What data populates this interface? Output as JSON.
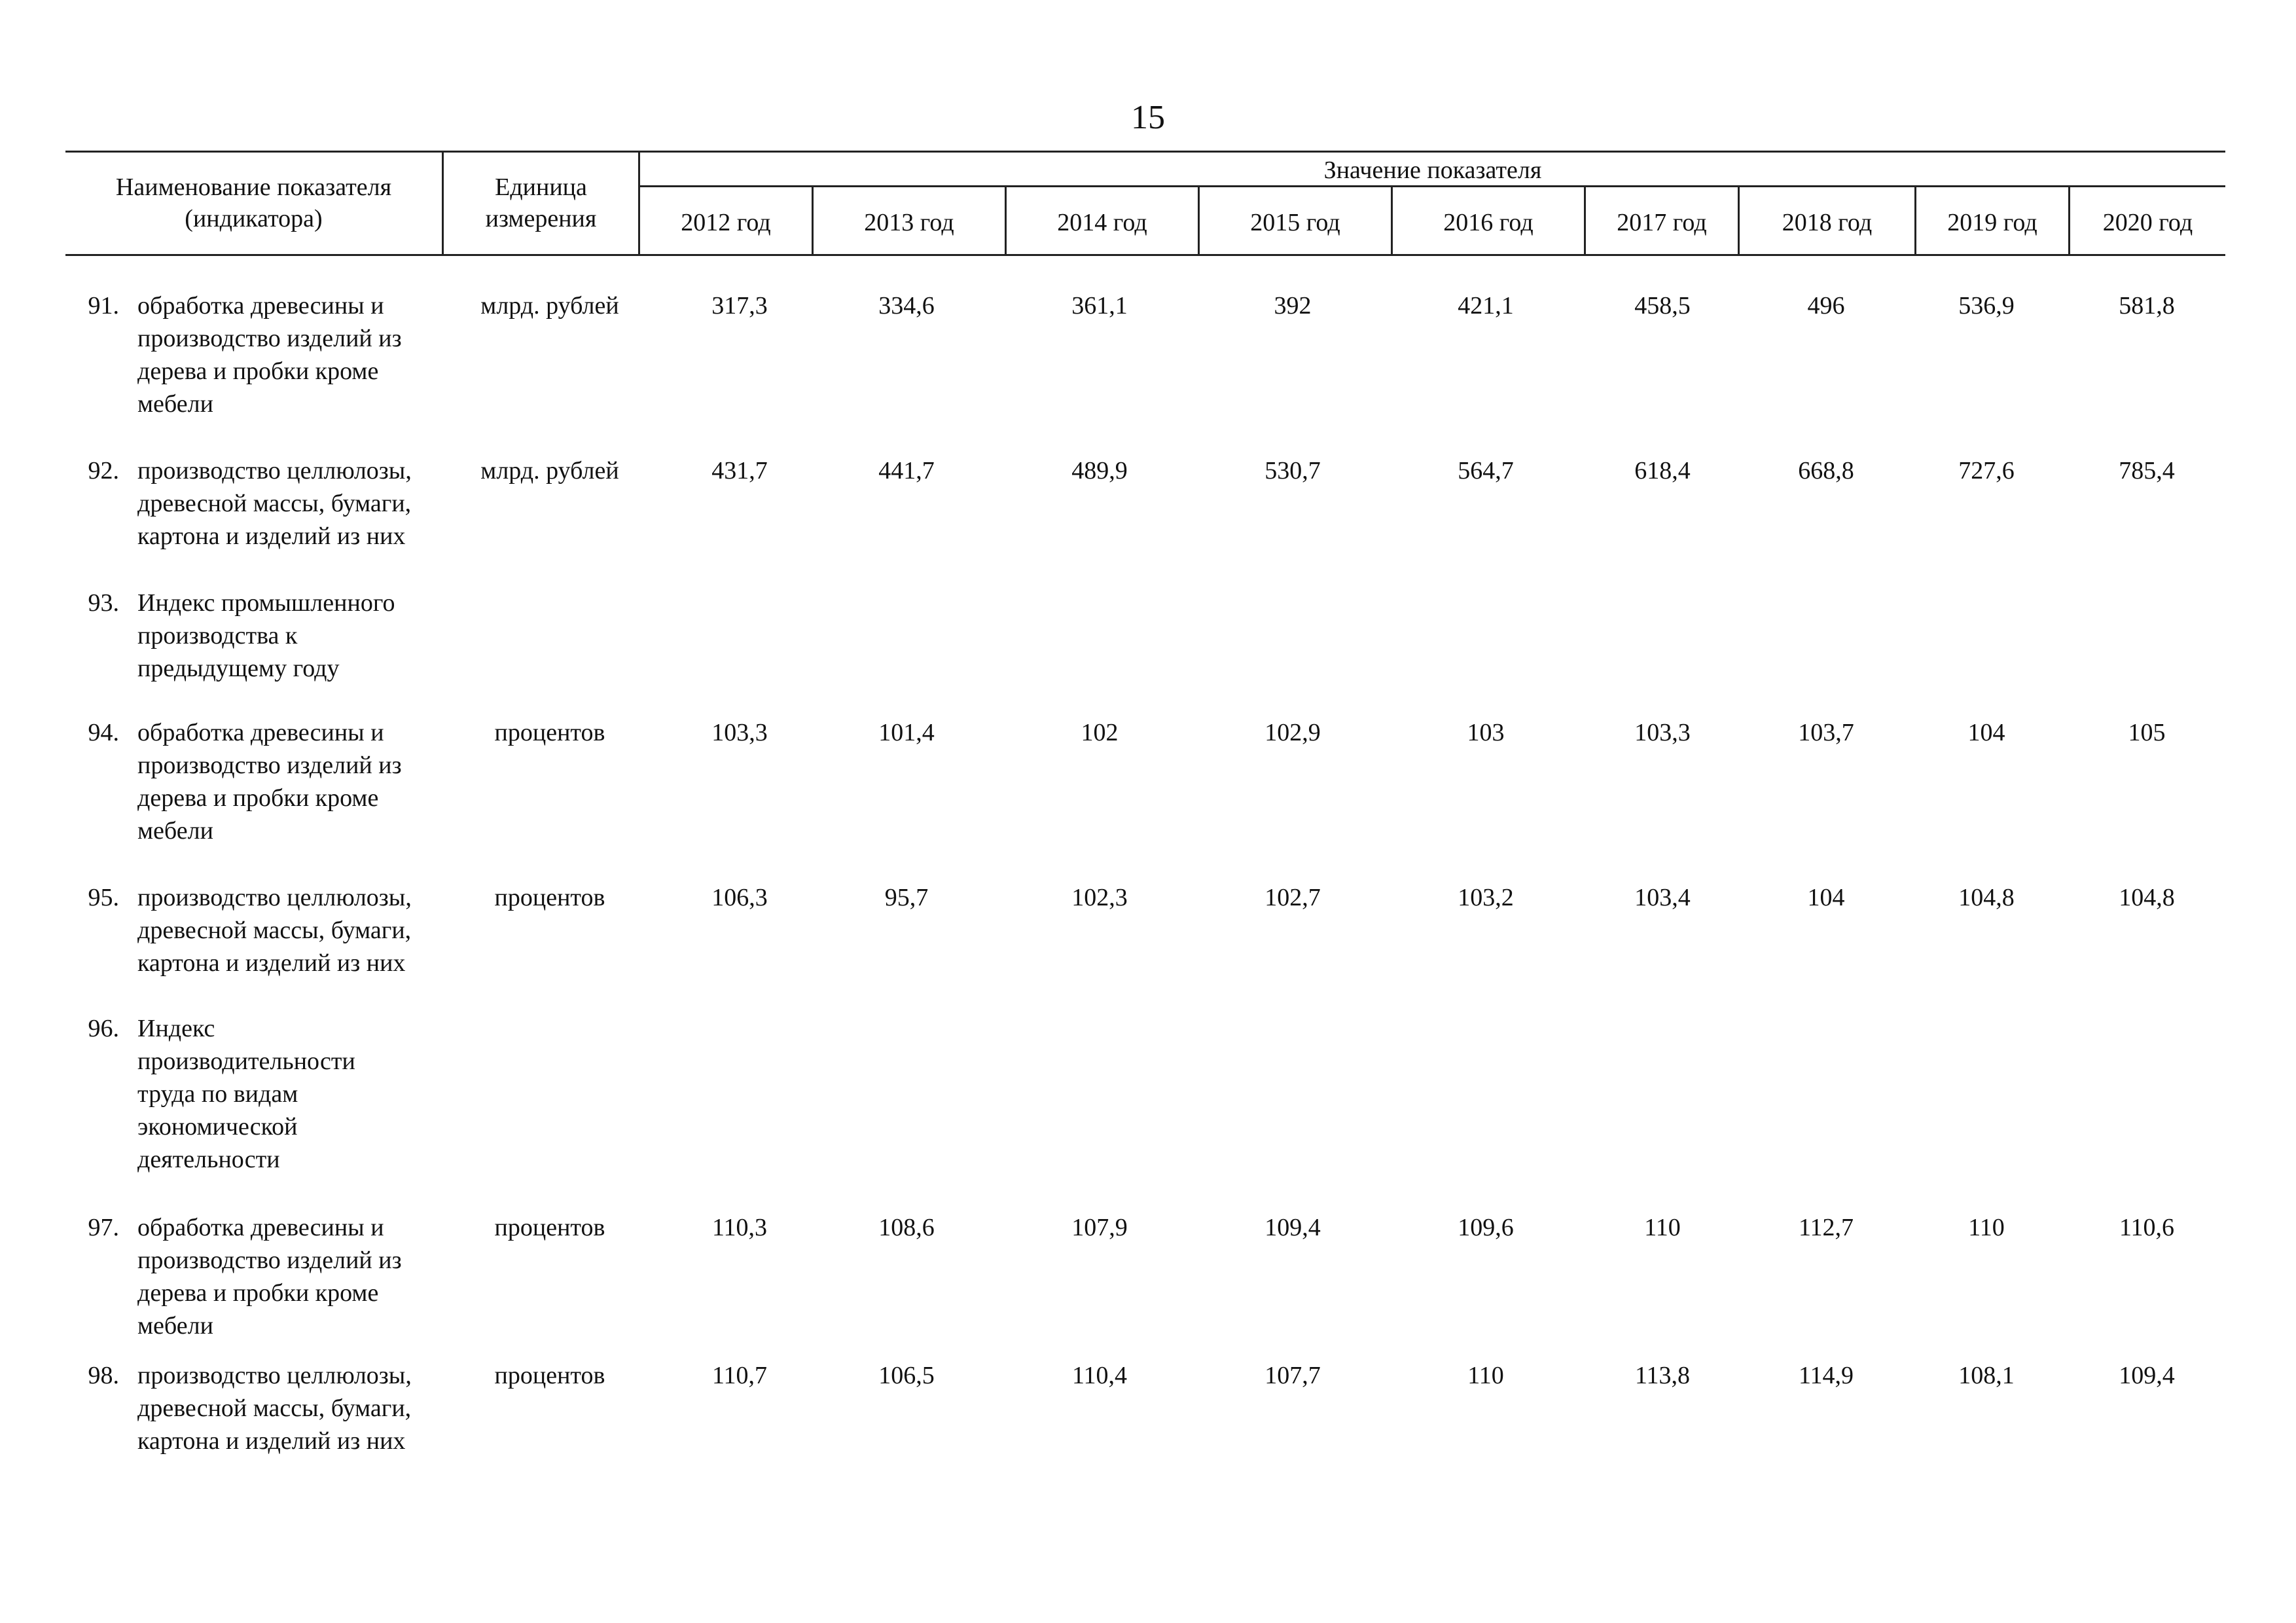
{
  "page": {
    "number": "15"
  },
  "header": {
    "name_col": "Наименование показателя\n(индикатора)",
    "unit_col": "Единица\nизмерения",
    "group_label": "Значение показателя",
    "years": [
      "2012 год",
      "2013 год",
      "2014 год",
      "2015 год",
      "2016 год",
      "2017 год",
      "2018 год",
      "2019 год",
      "2020 год"
    ]
  },
  "rows": [
    {
      "num": "91.",
      "name": "обработка древесины и производство изделий из дерева и пробки кроме мебели",
      "unit": "млрд. рублей",
      "values": [
        "317,3",
        "334,6",
        "361,1",
        "392",
        "421,1",
        "458,5",
        "496",
        "536,9",
        "581,8"
      ]
    },
    {
      "num": "92.",
      "name": "производство целлюлозы, древесной массы, бумаги, картона и изделий из них",
      "unit": "млрд. рублей",
      "values": [
        "431,7",
        "441,7",
        "489,9",
        "530,7",
        "564,7",
        "618,4",
        "668,8",
        "727,6",
        "785,4"
      ]
    },
    {
      "num": "93.",
      "name": "Индекс промышленного производства к предыдущему году",
      "unit": "",
      "values": [
        "",
        "",
        "",
        "",
        "",
        "",
        "",
        "",
        ""
      ]
    },
    {
      "num": "94.",
      "name": "обработка древесины и производство изделий из дерева и пробки кроме мебели",
      "unit": "процентов",
      "values": [
        "103,3",
        "101,4",
        "102",
        "102,9",
        "103",
        "103,3",
        "103,7",
        "104",
        "105"
      ]
    },
    {
      "num": "95.",
      "name": "производство целлюлозы, древесной массы, бумаги, картона и изделий из них",
      "unit": "процентов",
      "values": [
        "106,3",
        "95,7",
        "102,3",
        "102,7",
        "103,2",
        "103,4",
        "104",
        "104,8",
        "104,8"
      ]
    },
    {
      "num": "96.",
      "name": "Индекс производительности труда по видам экономической деятельности",
      "unit": "",
      "values": [
        "",
        "",
        "",
        "",
        "",
        "",
        "",
        "",
        ""
      ]
    },
    {
      "num": "97.",
      "name": "обработка древесины и производство изделий из дерева и пробки кроме мебели",
      "unit": "процентов",
      "values": [
        "110,3",
        "108,6",
        "107,9",
        "109,4",
        "109,6",
        "110",
        "112,7",
        "110",
        "110,6"
      ]
    },
    {
      "num": "98.",
      "name": "производство целлюлозы, древесной массы, бумаги, картона и изделий из них",
      "unit": "процентов",
      "values": [
        "110,7",
        "106,5",
        "110,4",
        "107,7",
        "110",
        "113,8",
        "114,9",
        "108,1",
        "109,4"
      ]
    }
  ]
}
